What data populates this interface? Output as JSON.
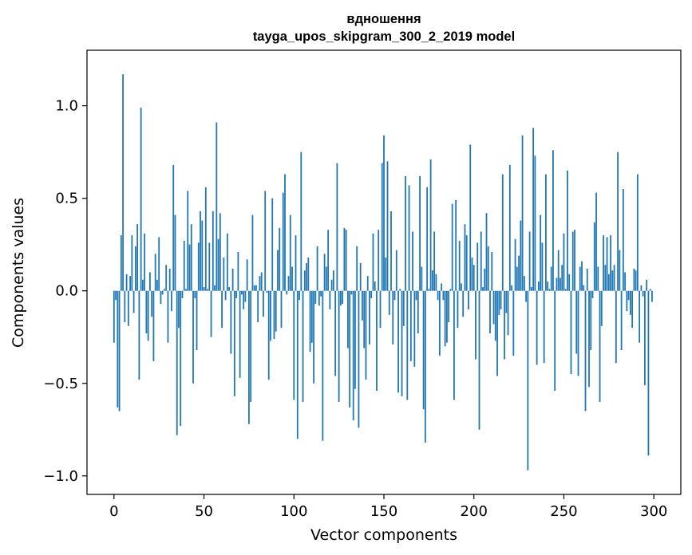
{
  "chart_data": {
    "type": "bar",
    "title_lines": [
      "вдношення",
      "tayga_upos_skipgram_300_2_2019 model"
    ],
    "xlabel": "Vector components",
    "ylabel": "Components values",
    "xlim": [
      -15,
      315
    ],
    "ylim": [
      -1.1,
      1.3
    ],
    "xticks": [
      0,
      50,
      100,
      150,
      200,
      250,
      300
    ],
    "xtick_labels": [
      "0",
      "50",
      "100",
      "150",
      "200",
      "250",
      "300"
    ],
    "yticks": [
      -1.0,
      -0.5,
      0.0,
      0.5,
      1.0
    ],
    "ytick_labels": [
      "−1.0",
      "−0.5",
      "0.0",
      "0.5",
      "1.0"
    ],
    "bar_color": "#1f77b4",
    "grid": false,
    "legend": null,
    "x": [
      0,
      1,
      2,
      3,
      4,
      5,
      6,
      7,
      8,
      9,
      10,
      11,
      12,
      13,
      14,
      15,
      16,
      17,
      18,
      19,
      20,
      21,
      22,
      23,
      24,
      25,
      26,
      27,
      28,
      29,
      30,
      31,
      32,
      33,
      34,
      35,
      36,
      37,
      38,
      39,
      40,
      41,
      42,
      43,
      44,
      45,
      46,
      47,
      48,
      49,
      50,
      51,
      52,
      53,
      54,
      55,
      56,
      57,
      58,
      59,
      60,
      61,
      62,
      63,
      64,
      65,
      66,
      67,
      68,
      69,
      70,
      71,
      72,
      73,
      74,
      75,
      76,
      77,
      78,
      79,
      80,
      81,
      82,
      83,
      84,
      85,
      86,
      87,
      88,
      89,
      90,
      91,
      92,
      93,
      94,
      95,
      96,
      97,
      98,
      99,
      100,
      101,
      102,
      103,
      104,
      105,
      106,
      107,
      108,
      109,
      110,
      111,
      112,
      113,
      114,
      115,
      116,
      117,
      118,
      119,
      120,
      121,
      122,
      123,
      124,
      125,
      126,
      127,
      128,
      129,
      130,
      131,
      132,
      133,
      134,
      135,
      136,
      137,
      138,
      139,
      140,
      141,
      142,
      143,
      144,
      145,
      146,
      147,
      148,
      149,
      150,
      151,
      152,
      153,
      154,
      155,
      156,
      157,
      158,
      159,
      160,
      161,
      162,
      163,
      164,
      165,
      166,
      167,
      168,
      169,
      170,
      171,
      172,
      173,
      174,
      175,
      176,
      177,
      178,
      179,
      180,
      181,
      182,
      183,
      184,
      185,
      186,
      187,
      188,
      189,
      190,
      191,
      192,
      193,
      194,
      195,
      196,
      197,
      198,
      199,
      200,
      201,
      202,
      203,
      204,
      205,
      206,
      207,
      208,
      209,
      210,
      211,
      212,
      213,
      214,
      215,
      216,
      217,
      218,
      219,
      220,
      221,
      222,
      223,
      224,
      225,
      226,
      227,
      228,
      229,
      230,
      231,
      232,
      233,
      234,
      235,
      236,
      237,
      238,
      239,
      240,
      241,
      242,
      243,
      244,
      245,
      246,
      247,
      248,
      249,
      250,
      251,
      252,
      253,
      254,
      255,
      256,
      257,
      258,
      259,
      260,
      261,
      262,
      263,
      264,
      265,
      266,
      267,
      268,
      269,
      270,
      271,
      272,
      273,
      274,
      275,
      276,
      277,
      278,
      279,
      280,
      281,
      282,
      283,
      284,
      285,
      286,
      287,
      288,
      289,
      290,
      291,
      292,
      293,
      294,
      295,
      296,
      297,
      298,
      299
    ],
    "values": [
      -0.28,
      -0.05,
      -0.63,
      -0.65,
      0.3,
      1.17,
      -0.17,
      0.09,
      -0.19,
      0.08,
      0.3,
      -0.12,
      0.24,
      0.36,
      -0.48,
      0.99,
      0.06,
      0.31,
      -0.23,
      -0.27,
      0.1,
      -0.14,
      -0.38,
      0.2,
      0.06,
      0.29,
      -0.07,
      -0.02,
      0.01,
      0.14,
      -0.28,
      0.12,
      -0.11,
      0.68,
      0.41,
      -0.78,
      -0.2,
      -0.73,
      -0.04,
      0.27,
      0.01,
      0.54,
      0.25,
      0.36,
      -0.5,
      -0.04,
      -0.32,
      0.26,
      0.43,
      0.38,
      0.02,
      0.56,
      0.01,
      0.26,
      -0.25,
      0.43,
      0.03,
      0.91,
      0.28,
      0.42,
      -0.2,
      0.18,
      -0.05,
      0.31,
      0.02,
      -0.34,
      0.12,
      -0.57,
      -0.04,
      0.21,
      -0.47,
      -0.02,
      -0.1,
      -0.06,
      0.17,
      -0.72,
      -0.6,
      0.41,
      0.03,
      0.03,
      -0.17,
      0.08,
      0.1,
      -0.14,
      0.54,
      -0.01,
      -0.48,
      -0.27,
      0.5,
      -0.26,
      -0.22,
      0.22,
      0.34,
      -0.2,
      0.53,
      0.63,
      -0.02,
      0.08,
      0.41,
      0.13,
      -0.59,
      0.3,
      -0.8,
      -0.05,
      0.75,
      -0.6,
      0.11,
      0.15,
      0.18,
      -0.33,
      -0.28,
      -0.5,
      -0.07,
      0.24,
      -0.08,
      -0.03,
      -0.81,
      0.2,
      0.13,
      0.33,
      -0.1,
      0.06,
      0.11,
      -0.46,
      0.69,
      -0.6,
      -0.08,
      -0.07,
      0.34,
      0.33,
      -0.31,
      -0.63,
      -0.02,
      -0.7,
      -0.53,
      0.24,
      -0.74,
      0.15,
      -0.16,
      -0.31,
      -0.48,
      0.08,
      -0.29,
      -0.04,
      0.31,
      0.05,
      -0.54,
      0.33,
      -0.2,
      0.69,
      0.84,
      0.18,
      0.7,
      -0.13,
      0.43,
      -0.29,
      -0.05,
      0.22,
      -0.55,
      0.01,
      -0.57,
      -0.19,
      0.62,
      -0.59,
      0.57,
      -0.38,
      0.32,
      -0.41,
      -0.05,
      -0.23,
      0.62,
      0.13,
      -0.64,
      -0.82,
      0.56,
      0.01,
      0.71,
      0.11,
      0.32,
      0.09,
      -0.05,
      -0.35,
      0.04,
      -0.05,
      -0.3,
      -0.28,
      -0.17,
      0.01,
      0.47,
      -0.59,
      0.49,
      -0.2,
      0.27,
      0.04,
      -0.14,
      0.36,
      0.3,
      -0.1,
      0.79,
      0.18,
      0.14,
      -0.37,
      0.26,
      -0.75,
      0.32,
      0.02,
      0.12,
      0.42,
      0.24,
      -0.23,
      0.21,
      -0.18,
      -0.27,
      -0.46,
      -0.13,
      -0.1,
      0.63,
      -0.37,
      -0.12,
      -0.24,
      0.68,
      0.03,
      -0.35,
      0.28,
      0.13,
      0.19,
      0.38,
      0.84,
      0.08,
      -0.06,
      -0.97,
      0.32,
      0.02,
      0.88,
      0.73,
      -0.4,
      0.05,
      0.41,
      0.26,
      -0.39,
      0.63,
      0.05,
      0.01,
      0.13,
      0.76,
      -0.54,
      0.07,
      0.22,
      0.07,
      0.14,
      0.31,
      0.01,
      0.65,
      0.09,
      -0.45,
      0.32,
      0.33,
      -0.34,
      -0.46,
      0.13,
      0.16,
      0.03,
      -0.65,
      0.12,
      -0.52,
      -0.32,
      -0.04,
      0.37,
      0.53,
      0.13,
      -0.6,
      -0.19,
      0.3,
      0.14,
      0.29,
      0.09,
      0.3,
      0.11,
      0.14,
      -0.39,
      0.75,
      0.22,
      -0.32,
      0.55,
      0.1,
      -0.11,
      -0.05,
      -0.13,
      -0.2,
      0.12,
      0.11,
      0.63,
      -0.28,
      0.03,
      -0.03,
      -0.51,
      0.06,
      -0.89,
      0.01,
      -0.06
    ]
  }
}
